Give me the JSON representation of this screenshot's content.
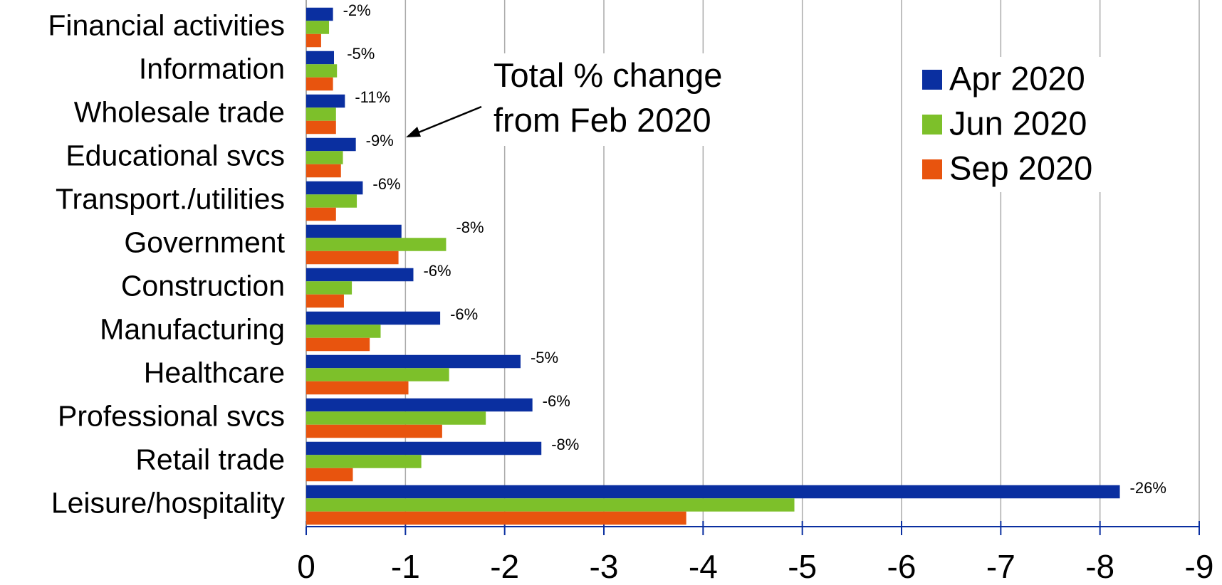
{
  "chart_data": {
    "type": "bar",
    "orientation": "horizontal",
    "categories": [
      "Financial activities",
      "Information",
      "Wholesale trade",
      "Educational svcs",
      "Transport./utilities",
      "Government",
      "Construction",
      "Manufacturing",
      "Healthcare",
      "Professional svcs",
      "Retail trade",
      "Leisure/hospitality"
    ],
    "series": [
      {
        "name": "Apr 2020",
        "color": "#0a2fa0",
        "values": [
          -0.27,
          -0.28,
          -0.39,
          -0.5,
          -0.57,
          -0.96,
          -1.08,
          -1.35,
          -2.16,
          -2.28,
          -2.37,
          -8.2
        ]
      },
      {
        "name": "Jun 2020",
        "color": "#7dc02a",
        "values": [
          -0.23,
          -0.31,
          -0.3,
          -0.37,
          -0.51,
          -1.41,
          -0.46,
          -0.75,
          -1.44,
          -1.81,
          -1.16,
          -4.92
        ]
      },
      {
        "name": "Sep 2020",
        "color": "#e8540e",
        "values": [
          -0.15,
          -0.27,
          -0.3,
          -0.35,
          -0.3,
          -0.93,
          -0.38,
          -0.64,
          -1.03,
          -1.37,
          -0.47,
          -3.83
        ]
      }
    ],
    "total_change": {
      "label": "Total % change from Feb 2020",
      "values": [
        -2,
        -5,
        -11,
        -9,
        -6,
        -8,
        -6,
        -6,
        -5,
        -6,
        -8,
        -26
      ],
      "value_labels": [
        "-2%",
        "-5%",
        "-11%",
        "-9%",
        "-6%",
        "-8%",
        "-6%",
        "-6%",
        "-5%",
        "-6%",
        "-8%",
        "-26%"
      ]
    },
    "xlim": [
      0,
      -9
    ],
    "xticks": [
      0,
      -1,
      -2,
      -3,
      -4,
      -5,
      -6,
      -7,
      -8,
      -9
    ],
    "grid": true,
    "legend": "upper right"
  }
}
